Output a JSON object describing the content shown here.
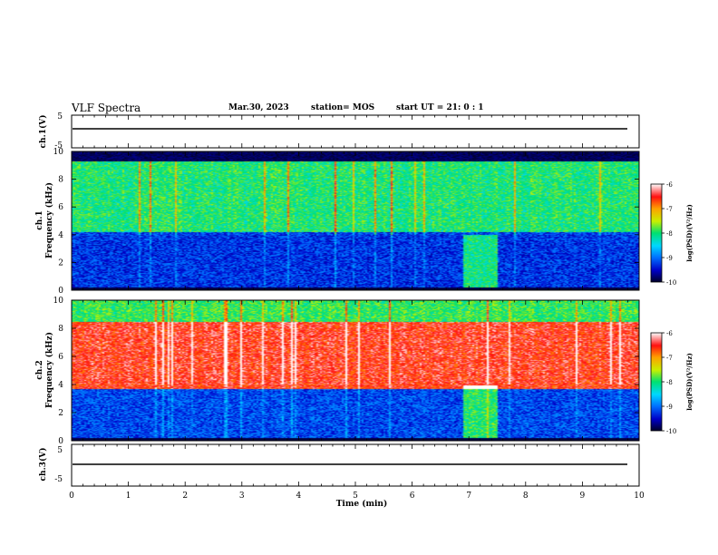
{
  "header": {
    "title": "VLF Spectra",
    "date": "Mar.30, 2023",
    "station": "station= MOS",
    "start_ut": "start  UT  =   21: 0   : 1"
  },
  "chart_data": [
    {
      "type": "line",
      "panel": "ch1-waveform",
      "ylabel": "ch.1(V)",
      "ylim": [
        -5,
        5
      ],
      "yticks": [
        "5",
        "-5"
      ],
      "series": [
        {
          "values_constant": -1
        }
      ]
    },
    {
      "type": "heatmap",
      "panel": "ch1-spectrogram",
      "ylabel": "ch.1\nFrequency (kHz)",
      "ylabel_line1": "ch.1",
      "ylabel_line2": "Frequency (kHz)",
      "xlim": [
        0,
        10
      ],
      "ylim": [
        0,
        10
      ],
      "yticks": [
        "0",
        "2",
        "4",
        "6",
        "8",
        "10"
      ],
      "colorbar": {
        "label": "log(PSD)(V²/Hz)",
        "ticks": [
          "-6",
          "-7",
          "-8",
          "-9",
          "-10"
        ],
        "range": [
          -10,
          -6
        ]
      },
      "description_bands": [
        {
          "f_low": 0,
          "f_high": 4.2,
          "level": -9.3
        },
        {
          "f_low": 4.2,
          "f_high": 9.3,
          "level": -8.1
        },
        {
          "f_low": 9.3,
          "f_high": 10,
          "level": -10
        }
      ],
      "bursts_min": [
        6.9,
        7.5
      ]
    },
    {
      "type": "heatmap",
      "panel": "ch2-spectrogram",
      "ylabel_line1": "ch.2",
      "ylabel_line2": "Frequency (kHz)",
      "xlim": [
        0,
        10
      ],
      "ylim": [
        0,
        10
      ],
      "yticks": [
        "0",
        "2",
        "4",
        "6",
        "8",
        "10"
      ],
      "colorbar": {
        "label": "log(PSD)(V²/Hz)",
        "ticks": [
          "-6",
          "-7",
          "-8",
          "-9",
          "-10"
        ],
        "range": [
          -10,
          -6
        ]
      },
      "description_bands": [
        {
          "f_low": 0,
          "f_high": 3.7,
          "level": -9.2
        },
        {
          "f_low": 3.7,
          "f_high": 8.5,
          "level": -6.6
        },
        {
          "f_low": 8.5,
          "f_high": 10,
          "level": -8.0
        }
      ],
      "bursts_min": [
        6.9,
        7.5
      ]
    },
    {
      "type": "line",
      "panel": "ch3-waveform",
      "ylabel": "ch.3(V)",
      "ylim": [
        -5,
        5
      ],
      "yticks": [
        "5",
        "-5"
      ],
      "series": [
        {
          "values_constant": -1
        }
      ]
    }
  ],
  "x_axis": {
    "label": "Time  (min)",
    "ticks": [
      "0",
      "1",
      "2",
      "3",
      "4",
      "5",
      "6",
      "7",
      "8",
      "9",
      "10"
    ]
  },
  "colors": {
    "colormap": [
      "#00002a",
      "#0000c8",
      "#0070ff",
      "#00d8ff",
      "#00e070",
      "#c8f000",
      "#ffa000",
      "#ff1010",
      "#ffffff"
    ]
  }
}
